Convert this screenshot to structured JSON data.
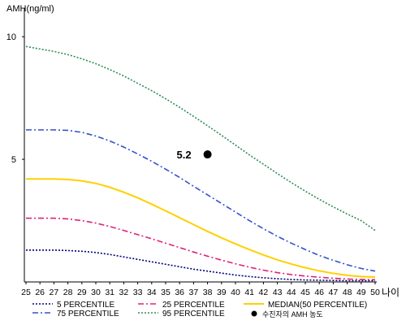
{
  "chart_data": {
    "type": "line",
    "ylabel": "AMH(ng/ml)",
    "xlabel": "나이",
    "x": [
      25,
      26,
      27,
      28,
      29,
      30,
      31,
      32,
      33,
      34,
      35,
      36,
      37,
      38,
      39,
      40,
      41,
      42,
      43,
      44,
      45,
      46,
      47,
      48,
      49,
      50
    ],
    "xlim": [
      25,
      50
    ],
    "ylim": [
      0,
      11
    ],
    "yticks": [
      5,
      10
    ],
    "grid": false,
    "legend_position": "bottom",
    "series": [
      {
        "name": "5 PERCENTILE",
        "color": "#000080",
        "style": "dotted",
        "values": [
          1.3,
          1.3,
          1.3,
          1.28,
          1.25,
          1.2,
          1.12,
          1.02,
          0.92,
          0.82,
          0.72,
          0.62,
          0.52,
          0.44,
          0.36,
          0.28,
          0.22,
          0.17,
          0.13,
          0.1,
          0.08,
          0.07,
          0.06,
          0.05,
          0.05,
          0.05
        ]
      },
      {
        "name": "25 PERCENTILE",
        "color": "#e0217a",
        "style": "dashdot",
        "values": [
          2.6,
          2.6,
          2.6,
          2.57,
          2.5,
          2.4,
          2.26,
          2.1,
          1.93,
          1.76,
          1.58,
          1.4,
          1.22,
          1.05,
          0.89,
          0.74,
          0.6,
          0.48,
          0.38,
          0.3,
          0.24,
          0.19,
          0.15,
          0.12,
          0.1,
          0.09
        ]
      },
      {
        "name": "75 PERCENTILE",
        "color": "#3452c8",
        "style": "dashdot",
        "values": [
          6.2,
          6.2,
          6.2,
          6.18,
          6.1,
          5.95,
          5.75,
          5.5,
          5.22,
          4.92,
          4.6,
          4.26,
          3.9,
          3.55,
          3.2,
          2.85,
          2.5,
          2.17,
          1.86,
          1.58,
          1.32,
          1.08,
          0.88,
          0.7,
          0.55,
          0.44
        ]
      },
      {
        "name": "95 PERCENTILE",
        "color": "#2e8b57",
        "style": "dotted",
        "values": [
          9.6,
          9.5,
          9.4,
          9.27,
          9.1,
          8.9,
          8.66,
          8.4,
          8.1,
          7.8,
          7.47,
          7.12,
          6.75,
          6.37,
          5.98,
          5.58,
          5.18,
          4.8,
          4.42,
          4.05,
          3.7,
          3.37,
          3.06,
          2.77,
          2.5,
          2.1
        ]
      },
      {
        "name": "MEDIAN(50 PERCENTILE)",
        "color": "#ffd000",
        "style": "solid",
        "values": [
          4.2,
          4.2,
          4.2,
          4.18,
          4.12,
          4.02,
          3.86,
          3.66,
          3.43,
          3.17,
          2.9,
          2.62,
          2.34,
          2.06,
          1.8,
          1.55,
          1.32,
          1.1,
          0.9,
          0.73,
          0.58,
          0.45,
          0.35,
          0.27,
          0.22,
          0.2
        ]
      }
    ],
    "points": [
      {
        "name": "수진자의 AMH 농도",
        "x": 38,
        "y": 5.2,
        "label": "5.2",
        "color": "#000000"
      }
    ]
  }
}
